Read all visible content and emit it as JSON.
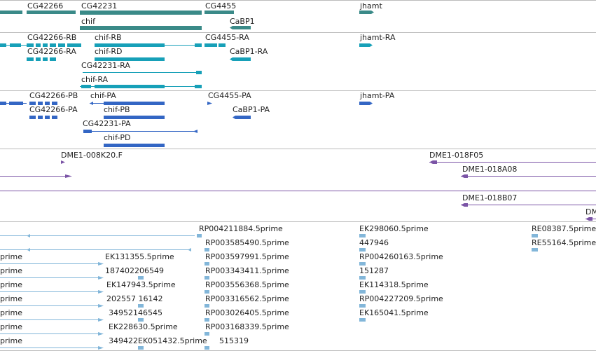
{
  "colors": {
    "gene": "#3a8a88",
    "transcript": "#17a0b8",
    "protein": "#3366c4",
    "clone": "#7b54a6",
    "est": "#82b6d9",
    "separator": "#bbbbbb",
    "text": "#222222"
  },
  "tracks": {
    "genes": [
      {
        "label": "CG42266",
        "feature": "gene-CG42266"
      },
      {
        "label": "CG42231",
        "feature": "gene-CG42231"
      },
      {
        "label": "CG4455",
        "feature": "gene-CG4455"
      },
      {
        "label": "jhamt",
        "feature": "gene-jhamt"
      },
      {
        "label": "chif",
        "feature": "gene-chif"
      },
      {
        "label": "CaBP1",
        "feature": "gene-CaBP1"
      }
    ],
    "transcripts": [
      {
        "label": "CG42266-RB"
      },
      {
        "label": "chif-RB"
      },
      {
        "label": "CG4455-RA"
      },
      {
        "label": "jhamt-RA"
      },
      {
        "label": "CG42266-RA"
      },
      {
        "label": "chif-RD"
      },
      {
        "label": "CaBP1-RA"
      },
      {
        "label": "CG42231-RA"
      },
      {
        "label": "chif-RA"
      }
    ],
    "proteins": [
      {
        "label": "CG42266-PB"
      },
      {
        "label": "chif-PA"
      },
      {
        "label": "CG4455-PA"
      },
      {
        "label": "jhamt-PA"
      },
      {
        "label": "CG42266-PA"
      },
      {
        "label": "chif-PB"
      },
      {
        "label": "CaBP1-PA"
      },
      {
        "label": "CG42231-PA"
      },
      {
        "label": "chif-PD"
      }
    ],
    "clones": [
      {
        "label": "DME1-008K20.F"
      },
      {
        "label": "DME1-018F05"
      },
      {
        "label": "DME1-018A08"
      },
      {
        "label": "DME1-018B07"
      },
      {
        "label": "DM"
      }
    ],
    "ests": [
      {
        "label": "RP004211884.5prime"
      },
      {
        "label": "EK298060.5prime"
      },
      {
        "label": "RE08387.5prime"
      },
      {
        "label": "RP003585490.5prime"
      },
      {
        "label": "447946"
      },
      {
        "label": "RE55164.5prime"
      },
      {
        "label": "prime"
      },
      {
        "label": "EK131355.5prime"
      },
      {
        "label": "RP003597991.5prime"
      },
      {
        "label": "RP004260163.5prime"
      },
      {
        "label": "prime"
      },
      {
        "label": "187402206549"
      },
      {
        "label": "RP003343411.5prime"
      },
      {
        "label": "151287"
      },
      {
        "label": "prime"
      },
      {
        "label": "EK147943.5prime"
      },
      {
        "label": "RP003556368.5prime"
      },
      {
        "label": "EK114318.5prime"
      },
      {
        "label": "prime"
      },
      {
        "label": "202557 16142"
      },
      {
        "label": "RP003316562.5prime"
      },
      {
        "label": "RP004227209.5prime"
      },
      {
        "label": "prime"
      },
      {
        "label": "34952146545"
      },
      {
        "label": "RP003026405.5prime"
      },
      {
        "label": "EK165041.5prime"
      },
      {
        "label": "prime"
      },
      {
        "label": "EK228630.5prime"
      },
      {
        "label": "RP003168339.5prime"
      },
      {
        "label": "prime"
      },
      {
        "label": "349422EK051432.5prime"
      },
      {
        "label": "515319"
      }
    ]
  }
}
